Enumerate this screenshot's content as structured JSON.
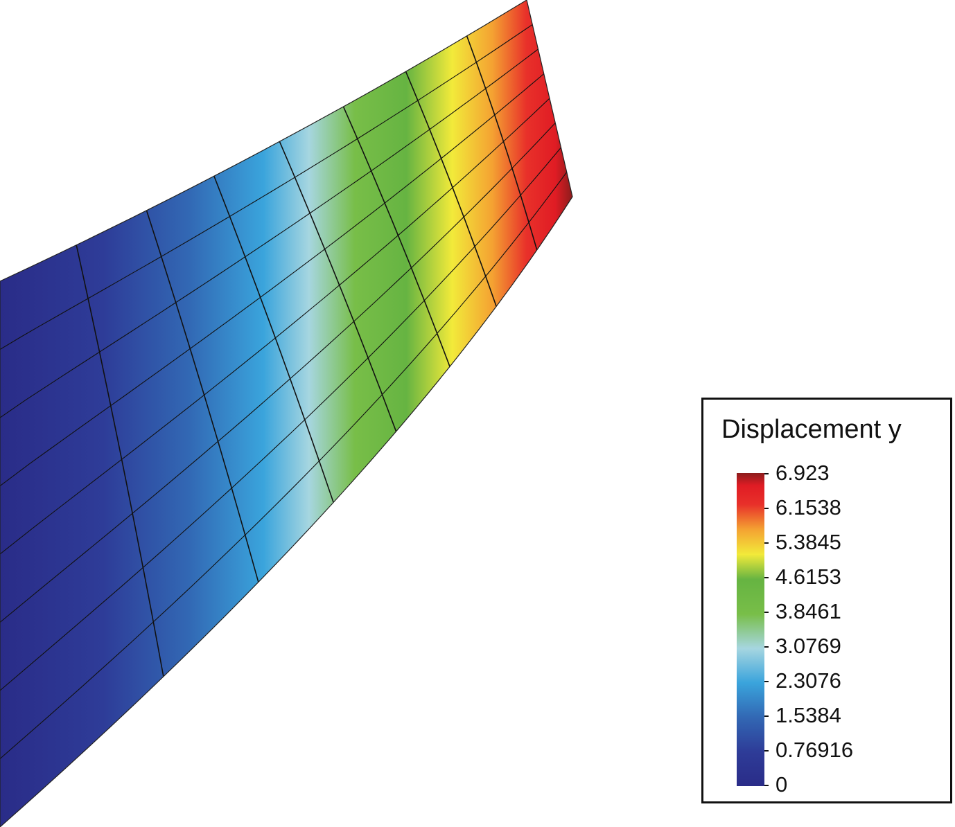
{
  "legend": {
    "title": "Displacement y",
    "ticks": [
      "6.923",
      "6.1538",
      "5.3845",
      "4.6153",
      "3.8461",
      "3.0769",
      "2.3076",
      "1.5384",
      "0.76916",
      "0"
    ],
    "min": 0,
    "max": 6.923
  },
  "colormap": [
    "#2a2c86",
    "#2e4aa0",
    "#3272b8",
    "#3aa6dc",
    "#a8d8e0",
    "#7cc04a",
    "#68b444",
    "#f4ec38",
    "#f4a030",
    "#e83028",
    "#e01c24",
    "#8c1c1c"
  ],
  "mesh": {
    "edge_color": "#111111",
    "columns": 8,
    "rows": 8
  }
}
